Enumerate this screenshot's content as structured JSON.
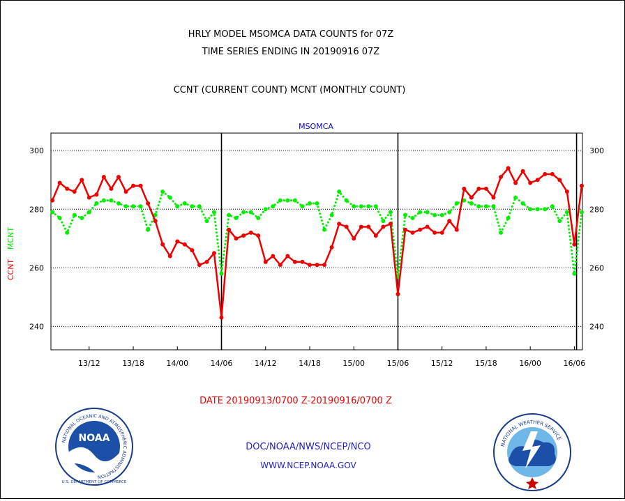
{
  "header": {
    "title_line1": "HRLY MODEL MSOMCA DATA COUNTS for 07Z",
    "title_line2": "TIME SERIES ENDING IN 20190916 07Z",
    "subtitle": "CCNT (CURRENT COUNT) MCNT (MONTHLY COUNT)"
  },
  "colors": {
    "ccnt": "#ee0000",
    "mcnt": "#00ee00",
    "station": "#0000cc",
    "footer": "#2222cc",
    "axis": "#000000"
  },
  "chart_data": {
    "type": "line",
    "plot_label": "MSOMCA",
    "x_tick_labels": [
      "13/12",
      "13/18",
      "14/00",
      "14/06",
      "14/12",
      "14/18",
      "15/00",
      "15/06",
      "15/12",
      "15/18",
      "16/00",
      "16/06"
    ],
    "x_tick_hours": [
      5,
      11,
      17,
      23,
      29,
      35,
      41,
      47,
      53,
      59,
      65,
      71
    ],
    "x_range_hours": [
      -0.2,
      72.1
    ],
    "ylim": [
      232,
      306
    ],
    "y_ticks": [
      240,
      260,
      280,
      300
    ],
    "y_tick_labels": [
      "240",
      "260",
      "280",
      "300"
    ],
    "y_gridlines": [
      240,
      260,
      280,
      300
    ],
    "day_boundary_hours": [
      23,
      47,
      71.3
    ],
    "ylabel_ccnt": "CCNT",
    "ylabel_mcnt": "MCNT",
    "date_range": "DATE 20190913/0700 Z-20190916/0700 Z",
    "x_start_date": "20190913/0700 Z",
    "series": [
      {
        "name": "CCNT",
        "style": "solid",
        "values": [
          283,
          289,
          287,
          286,
          290,
          284,
          285,
          291,
          287,
          291,
          286,
          288,
          288,
          282,
          276,
          268,
          264,
          269,
          268,
          266,
          261,
          262,
          265,
          243,
          273,
          270,
          271,
          272,
          271,
          262,
          264,
          261,
          264,
          262,
          262,
          261,
          261,
          261,
          267,
          275,
          274,
          270,
          274,
          274,
          271,
          274,
          275,
          251,
          273,
          272,
          273,
          274,
          272,
          272,
          276,
          273,
          287,
          284,
          287,
          287,
          284,
          291,
          294,
          289,
          293,
          289,
          290,
          292,
          292,
          290,
          286,
          268,
          288
        ]
      },
      {
        "name": "MCNT",
        "style": "dotted",
        "values": [
          279,
          277,
          272,
          278,
          277,
          279,
          282,
          283,
          283,
          282,
          281,
          281,
          281,
          273,
          278,
          286,
          284,
          281,
          282,
          281,
          281,
          276,
          279,
          258,
          278,
          277,
          279,
          279,
          277,
          280,
          281,
          283,
          283,
          283,
          281,
          282,
          282,
          273,
          278,
          286,
          283,
          281,
          281,
          281,
          281,
          276,
          279,
          257,
          278,
          277,
          279,
          279,
          278,
          278,
          279,
          282,
          283,
          282,
          281,
          281,
          281,
          272,
          277,
          284,
          282,
          280,
          280,
          280,
          281,
          276,
          279,
          258,
          279
        ]
      }
    ]
  },
  "footer": {
    "line1": "DOC/NOAA/NWS/NCEP/NCO",
    "line2": "WWW.NCEP.NOAA.GOV"
  },
  "logos": {
    "noaa": {
      "center": "NOAA",
      "ring": "NATIONAL OCEANIC AND ATMOSPHERIC ADMINISTRATION",
      "ring_bottom": "U.S. DEPARTMENT OF COMMERCE"
    },
    "nws": {
      "ring": "NATIONAL WEATHER SERVICE"
    }
  }
}
